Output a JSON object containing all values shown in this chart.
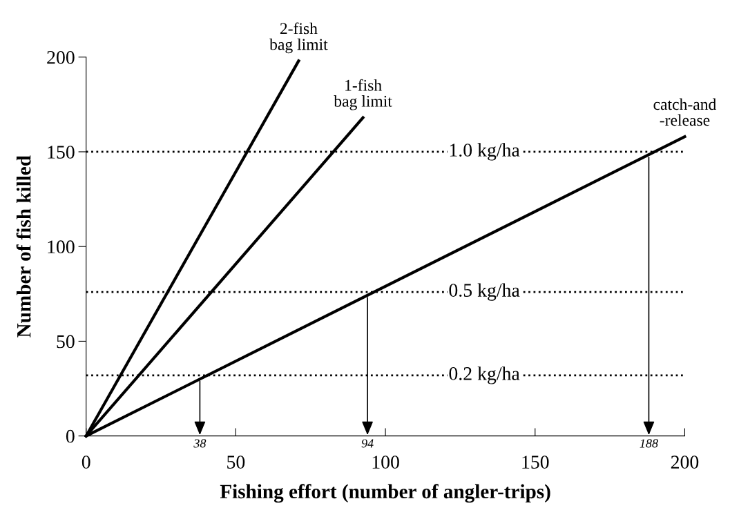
{
  "chart_data": {
    "type": "line",
    "xlabel": "Fishing effort (number of angler-trips)",
    "ylabel": "Number of fish killed",
    "series": [
      {
        "name": "2-fish\nbag limit",
        "color": "#000000",
        "x": [
          0,
          71
        ],
        "values": [
          0,
          198
        ]
      },
      {
        "name": "1-fish\nbag limit",
        "color": "#000000",
        "x": [
          0,
          92.5
        ],
        "values": [
          0,
          168
        ]
      },
      {
        "name": "catch-and\n-release",
        "color": "#000000",
        "x": [
          0,
          200
        ],
        "values": [
          0,
          158
        ]
      }
    ],
    "xlim": [
      0,
      200
    ],
    "xticks": [
      0,
      50,
      100,
      150,
      200
    ],
    "x2lim": [
      0,
      200
    ],
    "x2ticks": [
      38,
      94,
      188
    ],
    "ylim": [
      0,
      200
    ],
    "yticks": [
      0,
      50,
      100,
      150,
      200
    ],
    "ref_lines": [
      {
        "axis": "y",
        "value": 150,
        "label": "1.0 kg/ha",
        "color": "#000000",
        "line_style": "dotted"
      },
      {
        "axis": "y",
        "value": 76,
        "label": "0.5 kg/ha",
        "color": "#000000",
        "line_style": "dotted"
      },
      {
        "axis": "y",
        "value": 32,
        "label": "0.2 kg/ha",
        "color": "#000000",
        "line_style": "dotted"
      }
    ],
    "grid": false,
    "legend": false,
    "marker": "none",
    "line_style": "solid"
  }
}
